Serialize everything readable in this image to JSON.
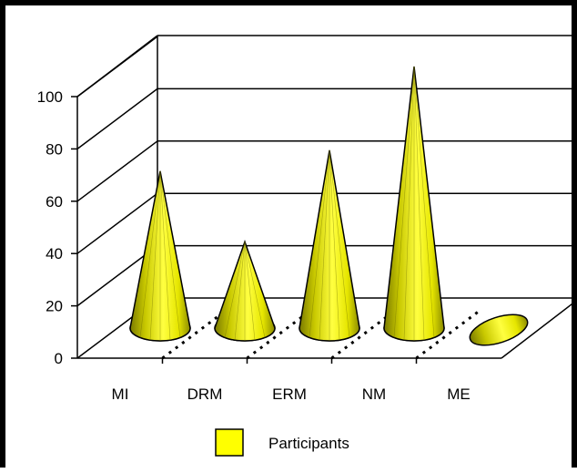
{
  "chart_data": {
    "type": "bar",
    "style": "3d-cone",
    "categories": [
      "MI",
      "DRM",
      "ERM",
      "NM",
      "ME"
    ],
    "series": [
      {
        "name": "Participants",
        "values": [
          60,
          33,
          68,
          100,
          8
        ],
        "color": "#ffff00"
      }
    ],
    "yticks": [
      0,
      20,
      40,
      60,
      80,
      100
    ],
    "ylim": [
      0,
      100
    ],
    "grid": true,
    "legend": "bottom"
  }
}
